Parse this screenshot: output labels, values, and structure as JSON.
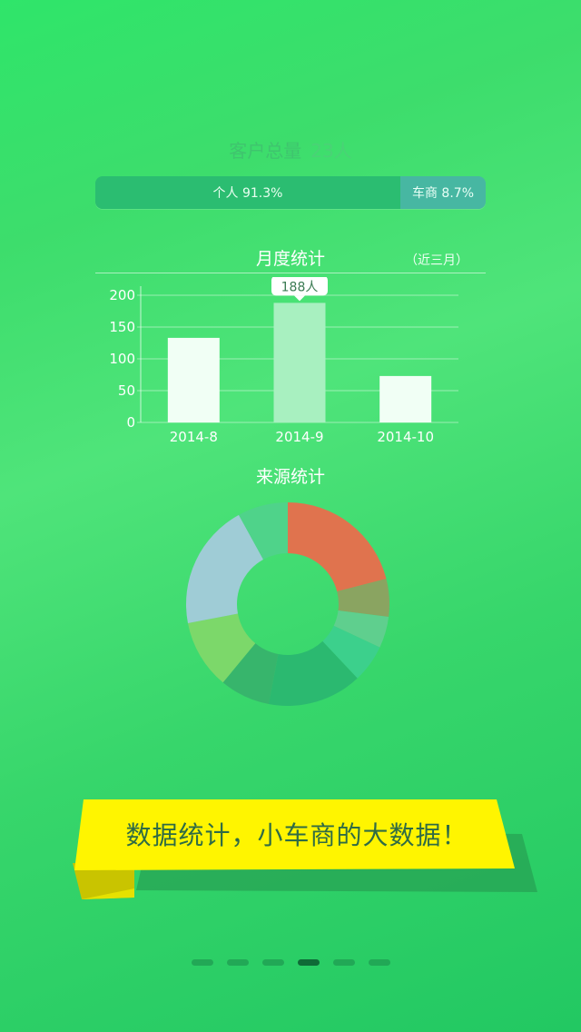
{
  "customer_total": {
    "label": "客户总量",
    "count": "23人"
  },
  "split": {
    "personal_label": "个人 91.3%",
    "dealer_label": "车商 8.7%",
    "personal_fraction": 0.913,
    "dealer_fraction": 0.087,
    "personal_color": "#2bbd71",
    "dealer_color": "#47b7a2"
  },
  "monthly": {
    "title": "月度统计",
    "range_label": "（近三月）"
  },
  "source": {
    "title": "来源统计"
  },
  "chart_data": [
    {
      "type": "bar",
      "title": "月度统计",
      "categories": [
        "2014-8",
        "2014-9",
        "2014-10"
      ],
      "values": [
        133,
        188,
        73
      ],
      "ylim": [
        0,
        200
      ],
      "yticks": [
        0,
        50,
        100,
        150,
        200
      ],
      "highlight_index": 1,
      "highlight_label": "188人",
      "grid": true,
      "bar_color": "#f1fff5",
      "highlight_color": "#a8f0c0"
    },
    {
      "type": "pie",
      "title": "来源统计",
      "donut": true,
      "values": [
        21,
        6,
        5,
        6,
        15,
        8,
        11,
        20,
        8
      ],
      "colors": [
        "#e0734e",
        "#8aa461",
        "#5fcf8e",
        "#3cd08c",
        "#2bb970",
        "#37b56c",
        "#7cd86a",
        "#9fccd6",
        "#4fd38a"
      ]
    }
  ],
  "banner": {
    "text": "数据统计，小车商的大数据！",
    "color": "#fff500"
  },
  "pager": {
    "count": 6,
    "active": 3
  }
}
